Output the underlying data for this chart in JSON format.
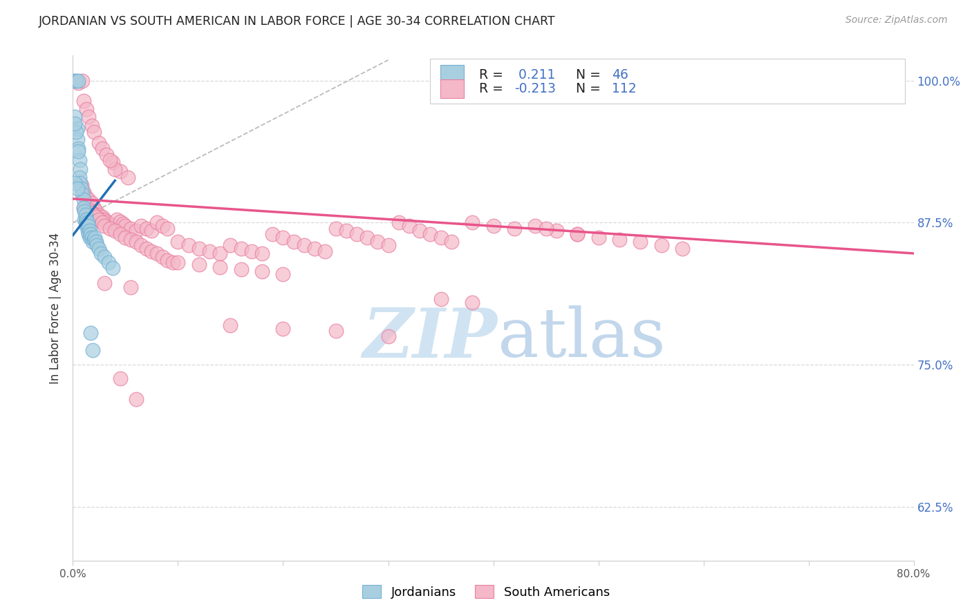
{
  "title": "JORDANIAN VS SOUTH AMERICAN IN LABOR FORCE | AGE 30-34 CORRELATION CHART",
  "source_text": "Source: ZipAtlas.com",
  "ylabel": "In Labor Force | Age 30-34",
  "x_min": 0.0,
  "x_max": 0.8,
  "y_min": 0.578,
  "y_max": 1.022,
  "y_ticks": [
    0.625,
    0.75,
    0.875,
    1.0
  ],
  "y_tick_labels": [
    "62.5%",
    "75.0%",
    "87.5%",
    "100.0%"
  ],
  "x_ticks": [
    0.0,
    0.1,
    0.2,
    0.3,
    0.4,
    0.5,
    0.6,
    0.7,
    0.8
  ],
  "x_tick_labels": [
    "0.0%",
    "",
    "",
    "",
    "",
    "",
    "",
    "",
    "80.0%"
  ],
  "blue_color": "#a8cfe0",
  "pink_color": "#f4b8c8",
  "blue_edge_color": "#74afd3",
  "pink_edge_color": "#e87fa0",
  "blue_line_color": "#2171b5",
  "pink_line_color": "#e8558a",
  "diag_color": "#bbbbbb",
  "background_color": "#ffffff",
  "grid_color": "#d8d8d8",
  "title_color": "#222222",
  "right_axis_color": "#4472c4",
  "watermark_zip_color": "#c8dff0",
  "watermark_atlas_color": "#b8d0e8",
  "blue_trend_x": [
    0.0,
    0.04
  ],
  "blue_trend_y": [
    0.864,
    0.912
  ],
  "pink_trend_x": [
    0.0,
    0.8
  ],
  "pink_trend_y": [
    0.896,
    0.848
  ],
  "diag_line_x": [
    0.0,
    0.3
  ],
  "diag_line_y": [
    0.875,
    1.018
  ],
  "blue_scatter": [
    [
      0.001,
      1.0
    ],
    [
      0.003,
      1.0
    ],
    [
      0.005,
      1.0
    ],
    [
      0.002,
      0.968
    ],
    [
      0.004,
      0.958
    ],
    [
      0.004,
      0.948
    ],
    [
      0.005,
      0.94
    ],
    [
      0.006,
      0.93
    ],
    [
      0.007,
      0.922
    ],
    [
      0.003,
      0.955
    ],
    [
      0.005,
      0.938
    ],
    [
      0.002,
      0.962
    ],
    [
      0.006,
      0.915
    ],
    [
      0.007,
      0.91
    ],
    [
      0.008,
      0.905
    ],
    [
      0.009,
      0.9
    ],
    [
      0.01,
      0.895
    ],
    [
      0.01,
      0.888
    ],
    [
      0.011,
      0.885
    ],
    [
      0.011,
      0.878
    ],
    [
      0.012,
      0.882
    ],
    [
      0.012,
      0.875
    ],
    [
      0.013,
      0.878
    ],
    [
      0.013,
      0.872
    ],
    [
      0.014,
      0.875
    ],
    [
      0.014,
      0.868
    ],
    [
      0.015,
      0.872
    ],
    [
      0.015,
      0.865
    ],
    [
      0.016,
      0.868
    ],
    [
      0.016,
      0.862
    ],
    [
      0.017,
      0.865
    ],
    [
      0.018,
      0.862
    ],
    [
      0.019,
      0.858
    ],
    [
      0.02,
      0.86
    ],
    [
      0.021,
      0.862
    ],
    [
      0.022,
      0.858
    ],
    [
      0.023,
      0.855
    ],
    [
      0.025,
      0.852
    ],
    [
      0.027,
      0.848
    ],
    [
      0.03,
      0.845
    ],
    [
      0.034,
      0.84
    ],
    [
      0.038,
      0.835
    ],
    [
      0.002,
      0.91
    ],
    [
      0.004,
      0.905
    ],
    [
      0.017,
      0.778
    ],
    [
      0.019,
      0.763
    ]
  ],
  "pink_scatter": [
    [
      0.005,
      0.998
    ],
    [
      0.009,
      1.0
    ],
    [
      0.01,
      0.982
    ],
    [
      0.013,
      0.975
    ],
    [
      0.015,
      0.968
    ],
    [
      0.018,
      0.96
    ],
    [
      0.02,
      0.955
    ],
    [
      0.025,
      0.945
    ],
    [
      0.028,
      0.94
    ],
    [
      0.032,
      0.935
    ],
    [
      0.038,
      0.928
    ],
    [
      0.045,
      0.92
    ],
    [
      0.052,
      0.915
    ],
    [
      0.04,
      0.922
    ],
    [
      0.035,
      0.93
    ],
    [
      0.008,
      0.908
    ],
    [
      0.01,
      0.902
    ],
    [
      0.012,
      0.898
    ],
    [
      0.015,
      0.895
    ],
    [
      0.018,
      0.892
    ],
    [
      0.02,
      0.888
    ],
    [
      0.022,
      0.885
    ],
    [
      0.025,
      0.882
    ],
    [
      0.028,
      0.88
    ],
    [
      0.03,
      0.878
    ],
    [
      0.032,
      0.876
    ],
    [
      0.035,
      0.874
    ],
    [
      0.038,
      0.872
    ],
    [
      0.04,
      0.87
    ],
    [
      0.042,
      0.878
    ],
    [
      0.045,
      0.876
    ],
    [
      0.048,
      0.874
    ],
    [
      0.05,
      0.872
    ],
    [
      0.055,
      0.87
    ],
    [
      0.06,
      0.868
    ],
    [
      0.065,
      0.872
    ],
    [
      0.07,
      0.87
    ],
    [
      0.075,
      0.868
    ],
    [
      0.08,
      0.875
    ],
    [
      0.085,
      0.872
    ],
    [
      0.09,
      0.87
    ],
    [
      0.01,
      0.888
    ],
    [
      0.015,
      0.886
    ],
    [
      0.018,
      0.884
    ],
    [
      0.02,
      0.882
    ],
    [
      0.022,
      0.88
    ],
    [
      0.025,
      0.878
    ],
    [
      0.028,
      0.875
    ],
    [
      0.03,
      0.872
    ],
    [
      0.035,
      0.87
    ],
    [
      0.04,
      0.868
    ],
    [
      0.045,
      0.865
    ],
    [
      0.05,
      0.862
    ],
    [
      0.055,
      0.86
    ],
    [
      0.06,
      0.858
    ],
    [
      0.065,
      0.855
    ],
    [
      0.07,
      0.852
    ],
    [
      0.075,
      0.85
    ],
    [
      0.08,
      0.848
    ],
    [
      0.085,
      0.845
    ],
    [
      0.09,
      0.842
    ],
    [
      0.095,
      0.84
    ],
    [
      0.1,
      0.858
    ],
    [
      0.11,
      0.855
    ],
    [
      0.12,
      0.852
    ],
    [
      0.13,
      0.85
    ],
    [
      0.14,
      0.848
    ],
    [
      0.15,
      0.855
    ],
    [
      0.16,
      0.852
    ],
    [
      0.17,
      0.85
    ],
    [
      0.18,
      0.848
    ],
    [
      0.19,
      0.865
    ],
    [
      0.2,
      0.862
    ],
    [
      0.21,
      0.858
    ],
    [
      0.22,
      0.855
    ],
    [
      0.23,
      0.852
    ],
    [
      0.24,
      0.85
    ],
    [
      0.25,
      0.87
    ],
    [
      0.26,
      0.868
    ],
    [
      0.27,
      0.865
    ],
    [
      0.28,
      0.862
    ],
    [
      0.29,
      0.858
    ],
    [
      0.3,
      0.855
    ],
    [
      0.31,
      0.875
    ],
    [
      0.32,
      0.872
    ],
    [
      0.33,
      0.868
    ],
    [
      0.34,
      0.865
    ],
    [
      0.35,
      0.862
    ],
    [
      0.36,
      0.858
    ],
    [
      0.38,
      0.875
    ],
    [
      0.4,
      0.872
    ],
    [
      0.42,
      0.87
    ],
    [
      0.44,
      0.872
    ],
    [
      0.46,
      0.868
    ],
    [
      0.48,
      0.865
    ],
    [
      0.5,
      0.862
    ],
    [
      0.52,
      0.86
    ],
    [
      0.54,
      0.858
    ],
    [
      0.56,
      0.855
    ],
    [
      0.58,
      0.852
    ],
    [
      0.1,
      0.84
    ],
    [
      0.12,
      0.838
    ],
    [
      0.14,
      0.836
    ],
    [
      0.16,
      0.834
    ],
    [
      0.18,
      0.832
    ],
    [
      0.2,
      0.83
    ],
    [
      0.15,
      0.785
    ],
    [
      0.2,
      0.782
    ],
    [
      0.25,
      0.78
    ],
    [
      0.3,
      0.775
    ],
    [
      0.35,
      0.808
    ],
    [
      0.38,
      0.805
    ],
    [
      0.45,
      0.87
    ],
    [
      0.48,
      0.865
    ],
    [
      0.045,
      0.738
    ],
    [
      0.06,
      0.72
    ],
    [
      0.03,
      0.822
    ],
    [
      0.055,
      0.818
    ]
  ]
}
